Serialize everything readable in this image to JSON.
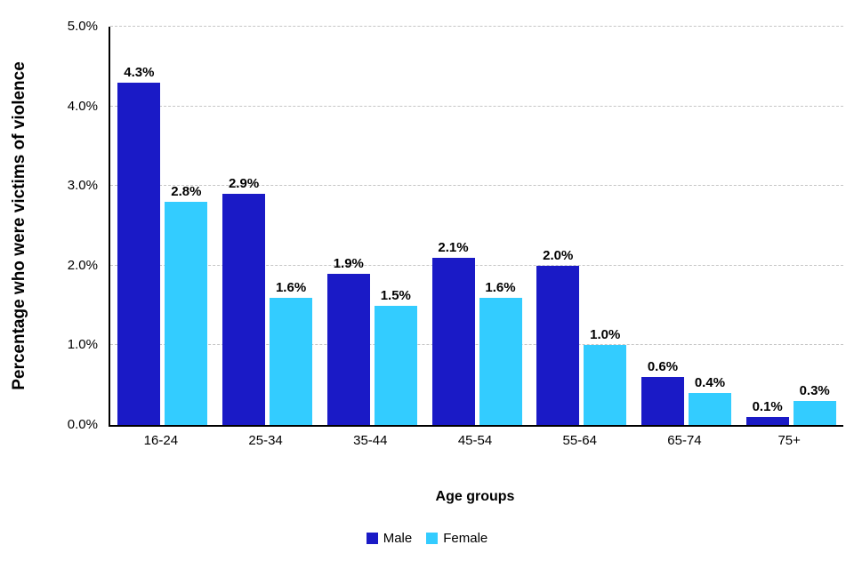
{
  "chart_data": {
    "type": "bar",
    "categories": [
      "16-24",
      "25-34",
      "35-44",
      "45-54",
      "55-64",
      "65-74",
      "75+"
    ],
    "series": [
      {
        "name": "Male",
        "color": "#1a1ac6",
        "values": [
          4.3,
          2.9,
          1.9,
          2.1,
          2.0,
          0.6,
          0.1
        ]
      },
      {
        "name": "Female",
        "color": "#33ccff",
        "values": [
          2.8,
          1.6,
          1.5,
          1.6,
          1.0,
          0.4,
          0.3
        ]
      }
    ],
    "title": "",
    "xlabel": "Age groups",
    "ylabel": "Percentage who were victims of violence",
    "ylim": [
      0,
      5
    ],
    "yticks": [
      "0.0%",
      "1.0%",
      "2.0%",
      "3.0%",
      "4.0%",
      "5.0%"
    ],
    "grid": "dashed horizontal gridlines",
    "legend_position": "bottom center",
    "value_label_format": "x.x%"
  }
}
